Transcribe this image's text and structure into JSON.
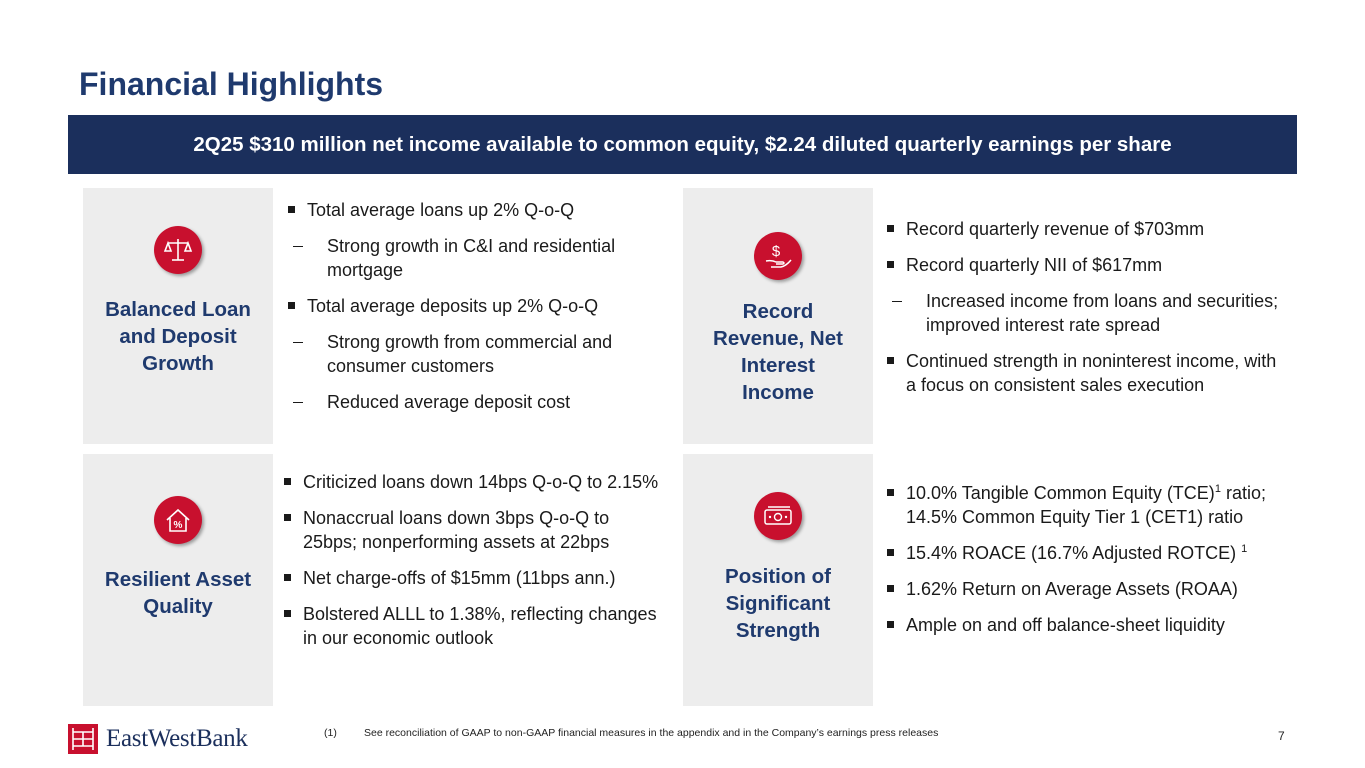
{
  "title": "Financial Highlights",
  "banner": "2Q25 $310 million net income available to common equity, $2.24 diluted quarterly earnings per share",
  "panels": {
    "loans": {
      "icon": "scales-icon",
      "label_lines": [
        "Balanced Loan",
        "and Deposit",
        "Growth"
      ],
      "bullets": [
        "Total average loans up 2% Q-o-Q",
        "Strong growth in C&I and residential mortgage",
        "Total average deposits up 2% Q-o-Q",
        "Strong growth from commercial and consumer customers",
        "Reduced average deposit cost"
      ]
    },
    "revenue": {
      "icon": "dollar-hand-icon",
      "label_lines": [
        "Record",
        "Revenue, Net",
        "Interest",
        "Income"
      ],
      "bullets": [
        "Record quarterly revenue of $703mm",
        "Record quarterly NII of $617mm",
        "Increased income from loans and securities; improved interest rate spread",
        "Continued strength in noninterest income, with a focus on consistent sales execution"
      ]
    },
    "asset": {
      "icon": "house-percent-icon",
      "label_lines": [
        "Resilient Asset",
        "Quality"
      ],
      "bullets": [
        "Criticized loans down 14bps Q-o-Q to 2.15%",
        "Nonaccrual loans down 3bps Q-o-Q to 25bps; nonperforming assets at 22bps",
        "Net charge-offs of $15mm (11bps ann.)",
        "Bolstered ALLL to 1.38%, reflecting changes in our economic outlook"
      ]
    },
    "strength": {
      "icon": "cash-icon",
      "label_lines": [
        "Position of",
        "Significant",
        "Strength"
      ],
      "bullets": [
        "10.0% Tangible Common Equity (TCE)",
        "1",
        "ratio; 14.5% Common Equity Tier 1 (CET1) ratio",
        "15.4% ROACE (16.7% Adjusted ROTCE) ",
        "1",
        "1.62% Return on Average Assets (ROAA)",
        "Ample on and off balance-sheet liquidity"
      ]
    }
  },
  "footnote": {
    "number": "(1)",
    "text": "See reconciliation of GAAP to non-GAAP financial measures in the appendix and in the Company’s earnings press releases"
  },
  "page_number": "7",
  "logo_text": "EastWestBank",
  "colors": {
    "navy": "#1b2f5c",
    "title_blue": "#1f3a6e",
    "red": "#c8102e",
    "panel_gray": "#ededed"
  }
}
